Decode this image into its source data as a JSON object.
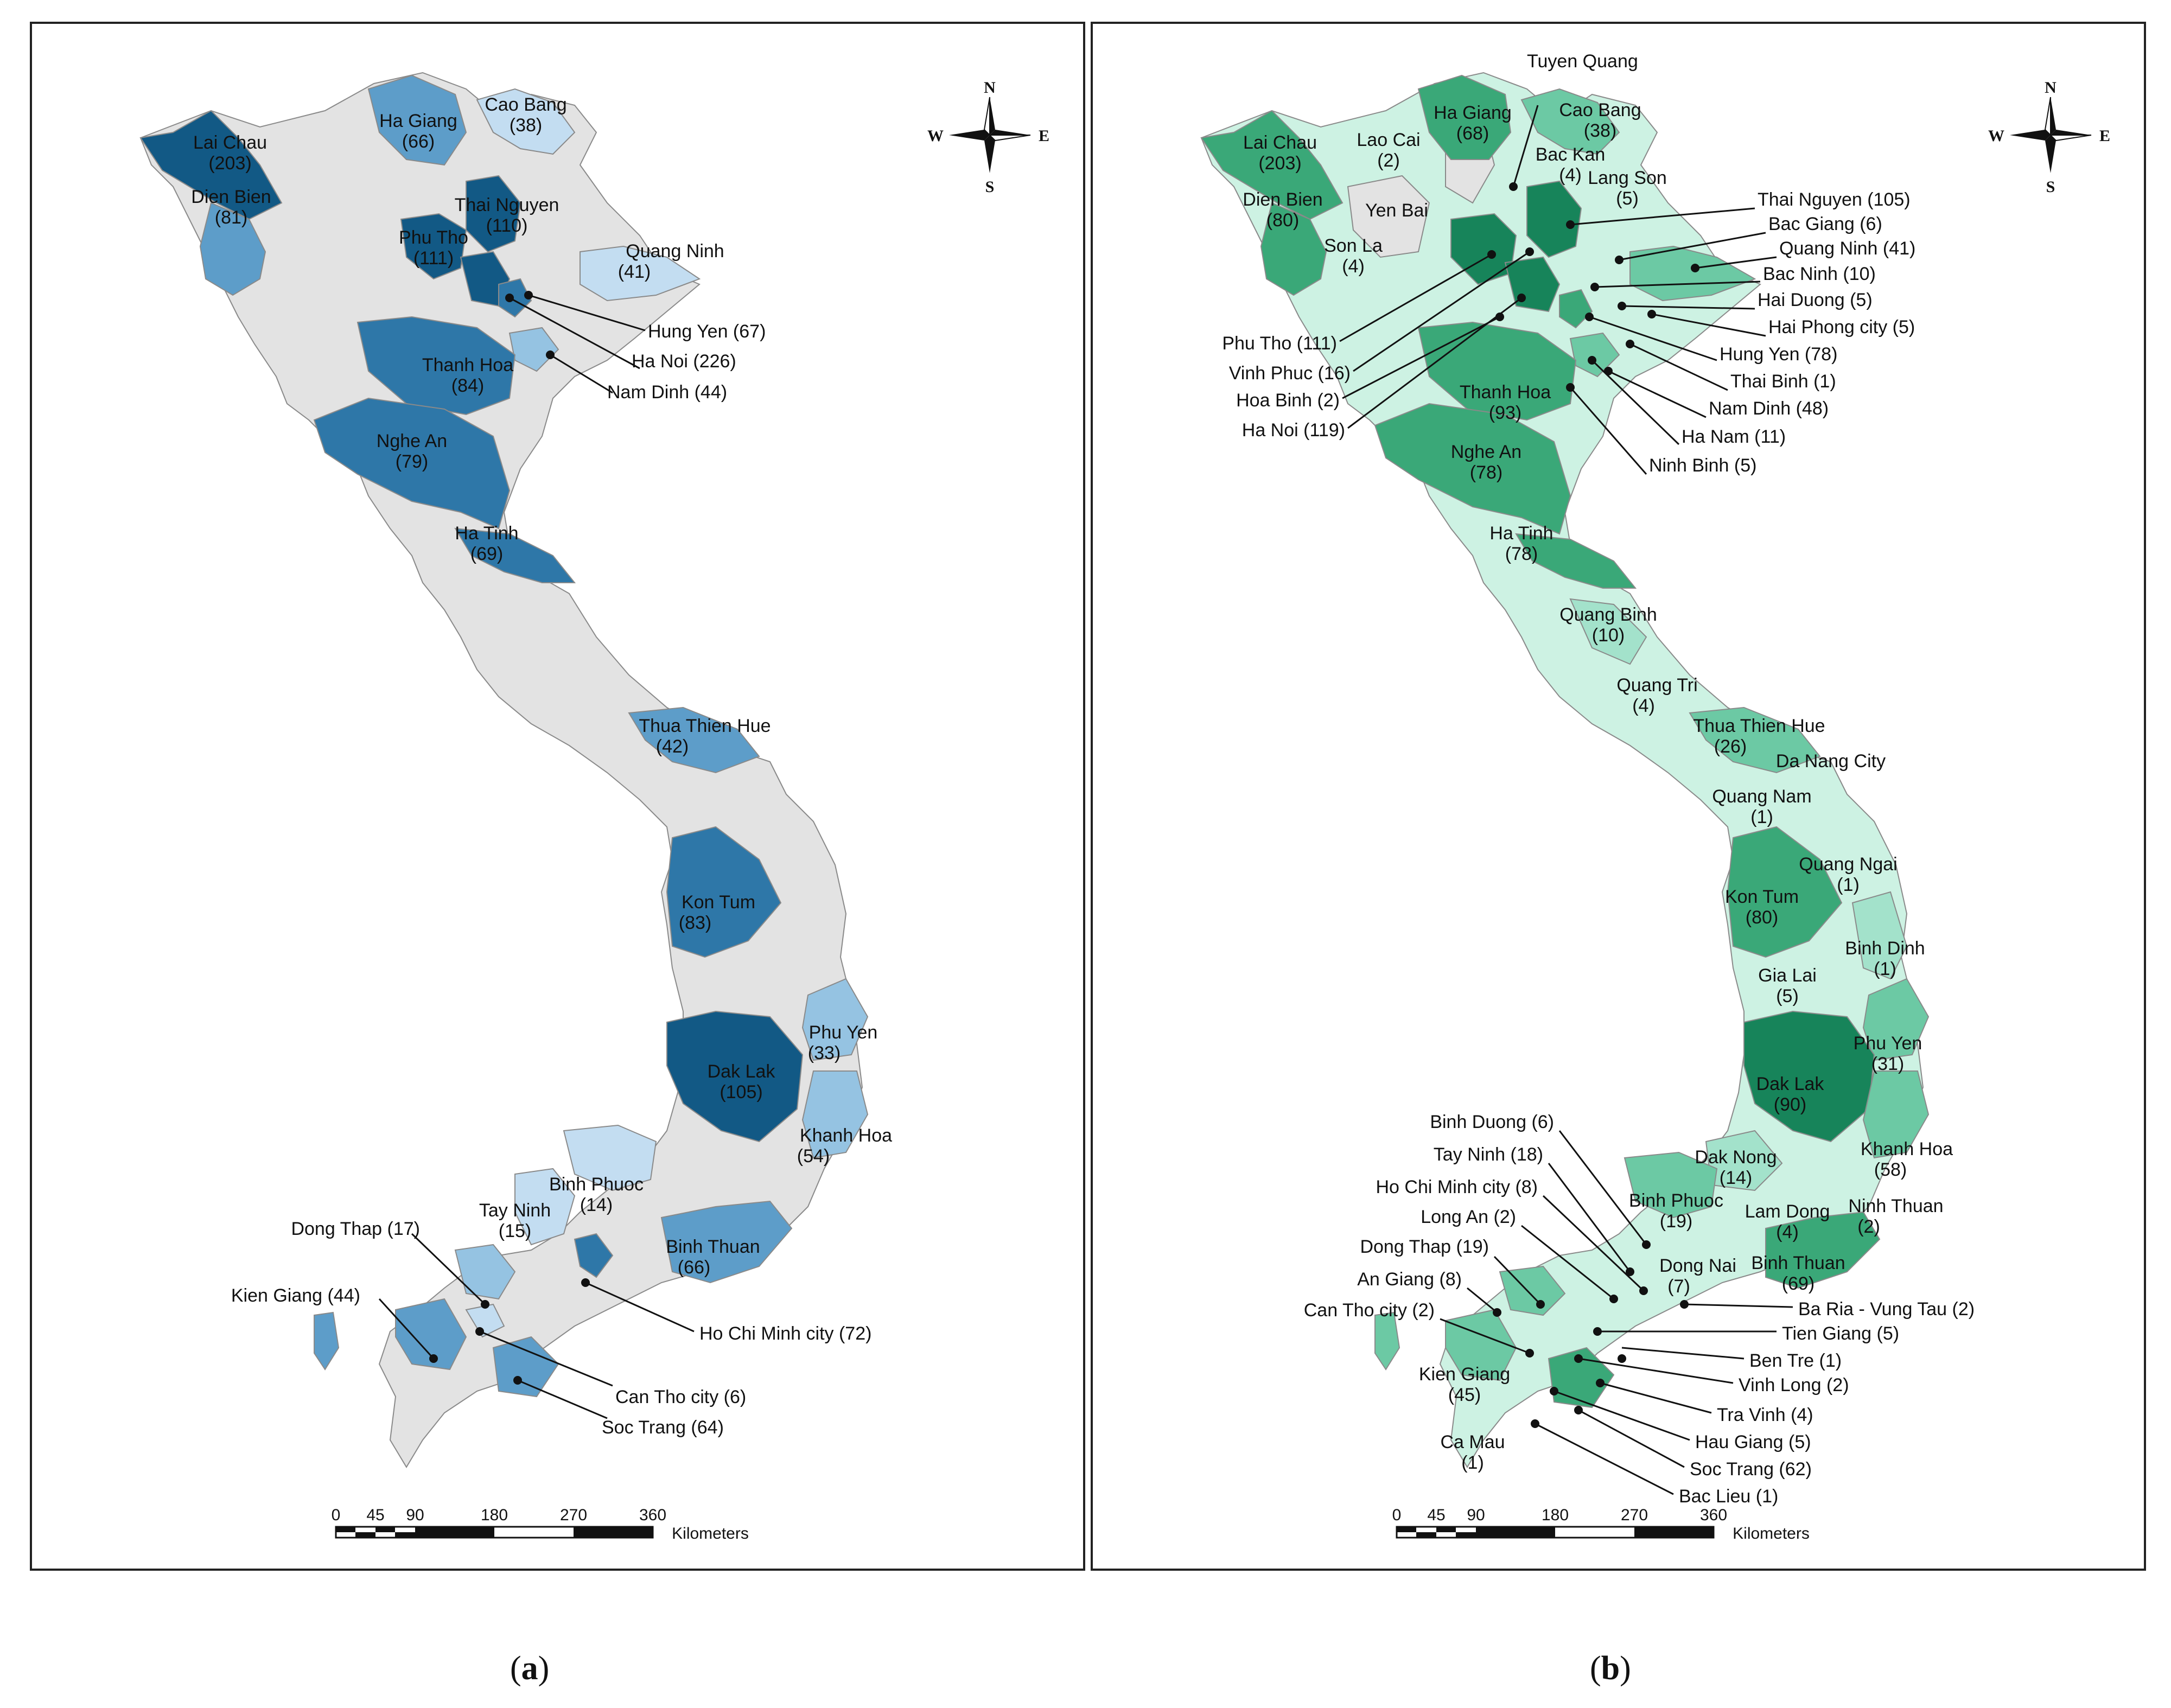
{
  "panels": [
    {
      "id": "a",
      "caption": "a",
      "colors": {
        "fill_base": "#e3e3e3",
        "class1": "#c3ddf1",
        "class2": "#95c3e2",
        "class3": "#5d9dc9",
        "class4": "#2e77a8",
        "class5": "#125985"
      },
      "compass": {
        "n": "N",
        "s": "S",
        "e": "E",
        "w": "W"
      },
      "scale": {
        "ticks": [
          "0",
          "45",
          "90",
          "180",
          "270",
          "360"
        ],
        "unit": "Kilometers"
      },
      "labels": [
        {
          "name": "Lai Chau",
          "value": "(203)"
        },
        {
          "name": "Ha Giang",
          "value": "(66)"
        },
        {
          "name": "Cao Bang",
          "value": "(38)"
        },
        {
          "name": "Dien Bien",
          "value": "(81)"
        },
        {
          "name": "Thai Nguyen",
          "value": "(110)"
        },
        {
          "name": "Phu Tho",
          "value": "(111)"
        },
        {
          "name": "Quang Ninh",
          "value": "(41)"
        },
        {
          "name": "Thanh Hoa",
          "value": "(84)"
        },
        {
          "name": "Nghe An",
          "value": "(79)"
        },
        {
          "name": "Ha Tinh",
          "value": "(69)"
        },
        {
          "name": "Thua Thien Hue",
          "value": "(42)"
        },
        {
          "name": "Kon Tum",
          "value": "(83)"
        },
        {
          "name": "Phu Yen",
          "value": "(33)"
        },
        {
          "name": "Dak Lak",
          "value": "(105)"
        },
        {
          "name": "Khanh Hoa",
          "value": "(54)"
        },
        {
          "name": "Binh Phuoc",
          "value": "(14)"
        },
        {
          "name": "Tay Ninh",
          "value": "(15)"
        },
        {
          "name": "Binh Thuan",
          "value": "(66)"
        }
      ],
      "callouts": [
        "Hung Yen (67)",
        "Ha Noi (226)",
        "Nam Dinh (44)",
        "Dong Thap (17)",
        "Kien Giang (44)",
        "Ho Chi Minh city (72)",
        "Can Tho city (6)",
        "Soc Trang (64)"
      ]
    },
    {
      "id": "b",
      "caption": "b",
      "colors": {
        "fill_base": "#e3e3e3",
        "class1": "#cdf2e3",
        "class2": "#a3e2cb",
        "class3": "#6cc9a4",
        "class4": "#3aa878",
        "class5": "#17845a"
      },
      "compass": {
        "n": "N",
        "s": "S",
        "e": "E",
        "w": "W"
      },
      "scale": {
        "ticks": [
          "0",
          "45",
          "90",
          "180",
          "270",
          "360"
        ],
        "unit": "Kilometers"
      },
      "labels": [
        {
          "name": "Lai Chau",
          "value": "(203)"
        },
        {
          "name": "Lao Cai",
          "value": "(2)"
        },
        {
          "name": "Ha Giang",
          "value": "(68)"
        },
        {
          "name": "Cao Bang",
          "value": "(38)"
        },
        {
          "name": "Bac Kan",
          "value": "(4)"
        },
        {
          "name": "Lang Son",
          "value": "(5)"
        },
        {
          "name": "Dien Bien",
          "value": "(80)"
        },
        {
          "name": "Yen Bai",
          "value": ""
        },
        {
          "name": "Son La",
          "value": "(4)"
        },
        {
          "name": "Thanh Hoa",
          "value": "(93)"
        },
        {
          "name": "Nghe An",
          "value": "(78)"
        },
        {
          "name": "Ha Tinh",
          "value": "(78)"
        },
        {
          "name": "Quang Binh",
          "value": "(10)"
        },
        {
          "name": "Quang Tri",
          "value": "(4)"
        },
        {
          "name": "Thua Thien Hue",
          "value": "(26)"
        },
        {
          "name": "Da Nang City",
          "value": ""
        },
        {
          "name": "Quang Nam",
          "value": "(1)"
        },
        {
          "name": "Quang Ngai",
          "value": "(1)"
        },
        {
          "name": "Kon Tum",
          "value": "(80)"
        },
        {
          "name": "Binh Dinh",
          "value": "(1)"
        },
        {
          "name": "Gia Lai",
          "value": "(5)"
        },
        {
          "name": "Phu Yen",
          "value": "(31)"
        },
        {
          "name": "Dak Lak",
          "value": "(90)"
        },
        {
          "name": "Khanh Hoa",
          "value": "(58)"
        },
        {
          "name": "Dak Nong",
          "value": "(14)"
        },
        {
          "name": "Binh Phuoc",
          "value": "(19)"
        },
        {
          "name": "Lam Dong",
          "value": "(4)"
        },
        {
          "name": "Ninh Thuan",
          "value": "(2)"
        },
        {
          "name": "Dong Nai",
          "value": "(7)"
        },
        {
          "name": "Binh Thuan",
          "value": "(69)"
        },
        {
          "name": "Kien Giang",
          "value": "(45)"
        },
        {
          "name": "Ca Mau",
          "value": "(1)"
        }
      ],
      "callouts": [
        "Tuyen Quang",
        "Thai Nguyen (105)",
        "Bac Giang (6)",
        "Quang Ninh (41)",
        "Bac Ninh (10)",
        "Hai Duong (5)",
        "Hai Phong city (5)",
        "Hung Yen (78)",
        "Thai Binh (1)",
        "Nam Dinh (48)",
        "Ha Nam (11)",
        "Ninh Binh (5)",
        "Phu Tho (111)",
        "Vinh Phuc (16)",
        "Hoa Binh (2)",
        "Ha Noi  (119)",
        "Binh Duong (6)",
        "Tay Ninh (18)",
        "Ho Chi Minh city (8)",
        "Long An (2)",
        "Dong Thap (19)",
        "An Giang (8)",
        "Can Tho city (2)",
        "Ba Ria - Vung Tau (2)",
        "Tien Giang (5)",
        "Ben Tre (1)",
        "Vinh Long (2)",
        "Tra Vinh (4)",
        "Hau Giang (5)",
        "Soc Trang (62)",
        "Bac Lieu (1)"
      ]
    }
  ]
}
